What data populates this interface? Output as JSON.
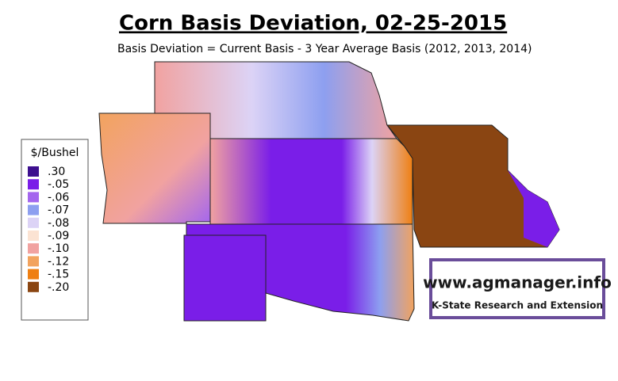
{
  "header": {
    "title": "Corn Basis Deviation, 02-25-2015",
    "subtitle": "Basis Deviation = Current Basis - 3 Year Average Basis (2012, 2013, 2014)"
  },
  "legend": {
    "title": "$/Bushel",
    "items": [
      {
        "label": ".30",
        "color": "#3d0f8f"
      },
      {
        "label": "-.05",
        "color": "#7a1ee8"
      },
      {
        "label": "-.06",
        "color": "#a466ee"
      },
      {
        "label": "-.07",
        "color": "#8d9ff0"
      },
      {
        "label": "-.08",
        "color": "#dcd3f6"
      },
      {
        "label": "-.09",
        "color": "#fbe3d3"
      },
      {
        "label": "-.10",
        "color": "#f1a2a0"
      },
      {
        "label": "-.12",
        "color": "#f2a35e"
      },
      {
        "label": "-.15",
        "color": "#ef7f12"
      },
      {
        "label": "-.20",
        "color": "#8a4512"
      }
    ]
  },
  "logo": {
    "url": "www.agmanager.info",
    "org": "K-State Research and Extension"
  }
}
